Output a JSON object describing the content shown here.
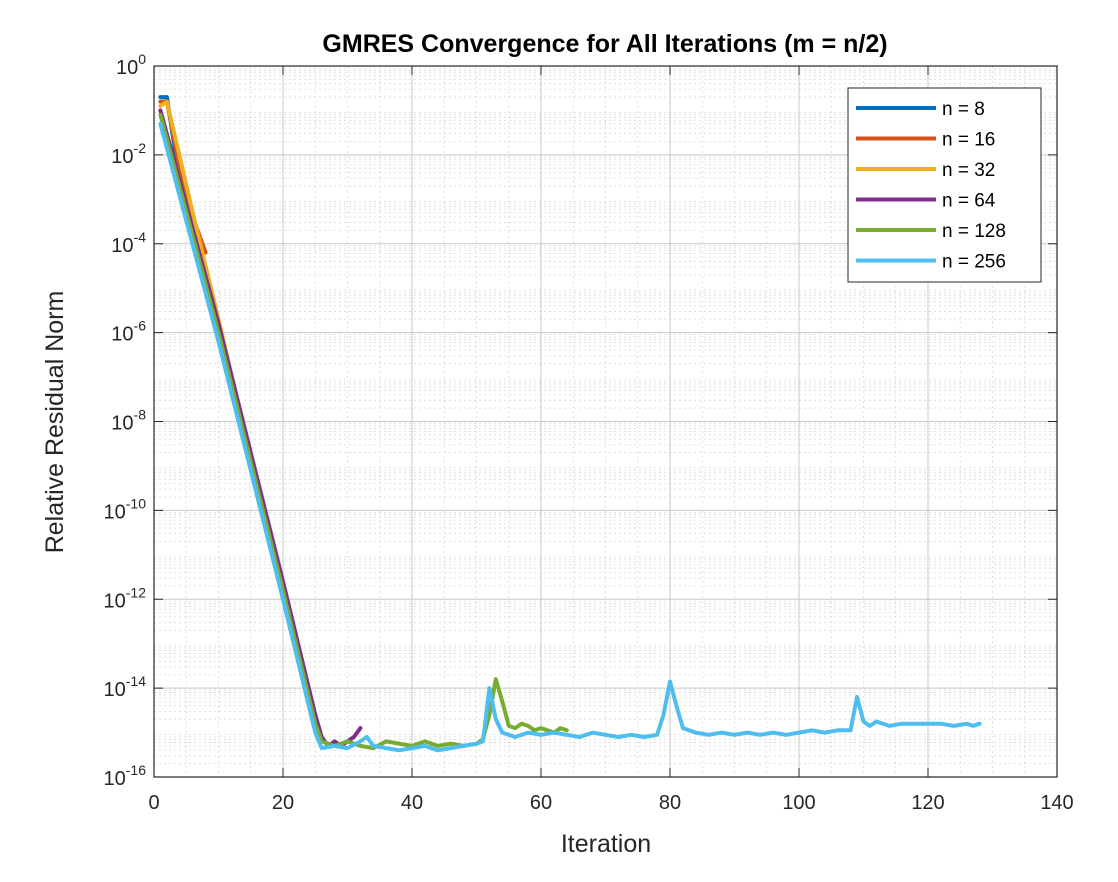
{
  "chart_data": {
    "type": "line",
    "title": "GMRES Convergence for All Iterations (m = n/2)",
    "xlabel": "Iteration",
    "ylabel": "Relative Residual Norm",
    "xlim": [
      0,
      140
    ],
    "ylim_exp": [
      -16,
      0
    ],
    "yscale": "log",
    "grid": true,
    "minor_grid": true,
    "legend_position": "top-right",
    "x_ticks": [
      "0",
      "20",
      "40",
      "60",
      "80",
      "100",
      "120",
      "140"
    ],
    "y_ticks": [
      {
        "base": "10",
        "exp": "0"
      },
      {
        "base": "10",
        "exp": "-2"
      },
      {
        "base": "10",
        "exp": "-4"
      },
      {
        "base": "10",
        "exp": "-6"
      },
      {
        "base": "10",
        "exp": "-8"
      },
      {
        "base": "10",
        "exp": "-10"
      },
      {
        "base": "10",
        "exp": "-12"
      },
      {
        "base": "10",
        "exp": "-14"
      },
      {
        "base": "10",
        "exp": "-16"
      }
    ],
    "series": [
      {
        "name": "n = 8",
        "color": "#0072BD",
        "points": [
          [
            1,
            -0.7
          ],
          [
            2,
            -0.7
          ],
          [
            3,
            -1.65
          ],
          [
            4,
            -2.6
          ]
        ]
      },
      {
        "name": "n = 16",
        "color": "#D95319",
        "points": [
          [
            1,
            -0.8
          ],
          [
            2,
            -0.8
          ],
          [
            4,
            -2.3
          ],
          [
            6,
            -3.4
          ],
          [
            8,
            -4.2
          ]
        ]
      },
      {
        "name": "n = 32",
        "color": "#EDB120",
        "points": [
          [
            1,
            -0.9
          ],
          [
            2,
            -0.8
          ],
          [
            6,
            -3.3
          ],
          [
            10,
            -5.7
          ],
          [
            14,
            -8.2
          ],
          [
            16,
            -9.4
          ]
        ]
      },
      {
        "name": "n = 64",
        "color": "#7E2F8E",
        "points": [
          [
            1,
            -1.0
          ],
          [
            10,
            -5.8
          ],
          [
            20,
            -11.6
          ],
          [
            25,
            -14.6
          ],
          [
            26,
            -15.1
          ],
          [
            27,
            -15.3
          ],
          [
            28,
            -15.2
          ],
          [
            29,
            -15.3
          ],
          [
            30,
            -15.2
          ],
          [
            31,
            -15.1
          ],
          [
            32,
            -14.9
          ]
        ]
      },
      {
        "name": "n = 128",
        "color": "#77AC30",
        "points": [
          [
            1,
            -1.1
          ],
          [
            10,
            -6.0
          ],
          [
            20,
            -11.8
          ],
          [
            25,
            -14.8
          ],
          [
            26,
            -15.2
          ],
          [
            28,
            -15.3
          ],
          [
            30,
            -15.2
          ],
          [
            32,
            -15.3
          ],
          [
            34,
            -15.35
          ],
          [
            36,
            -15.2
          ],
          [
            38,
            -15.25
          ],
          [
            40,
            -15.3
          ],
          [
            42,
            -15.2
          ],
          [
            44,
            -15.3
          ],
          [
            46,
            -15.25
          ],
          [
            48,
            -15.3
          ],
          [
            50,
            -15.25
          ],
          [
            51,
            -15.15
          ],
          [
            52,
            -14.6
          ],
          [
            53,
            -13.8
          ],
          [
            54,
            -14.3
          ],
          [
            55,
            -14.85
          ],
          [
            56,
            -14.9
          ],
          [
            57,
            -14.8
          ],
          [
            58,
            -14.85
          ],
          [
            59,
            -14.95
          ],
          [
            60,
            -14.9
          ],
          [
            61,
            -14.95
          ],
          [
            62,
            -15.0
          ],
          [
            63,
            -14.9
          ],
          [
            64,
            -14.95
          ]
        ]
      },
      {
        "name": "n = 256",
        "color": "#4DBEEE",
        "points": [
          [
            1,
            -1.3
          ],
          [
            10,
            -6.2
          ],
          [
            20,
            -12.0
          ],
          [
            25,
            -15.0
          ],
          [
            26,
            -15.35
          ],
          [
            28,
            -15.3
          ],
          [
            30,
            -15.35
          ],
          [
            32,
            -15.2
          ],
          [
            33,
            -15.1
          ],
          [
            34,
            -15.3
          ],
          [
            36,
            -15.35
          ],
          [
            38,
            -15.4
          ],
          [
            40,
            -15.35
          ],
          [
            42,
            -15.3
          ],
          [
            44,
            -15.4
          ],
          [
            46,
            -15.35
          ],
          [
            48,
            -15.3
          ],
          [
            50,
            -15.25
          ],
          [
            51,
            -15.2
          ],
          [
            52,
            -14.0
          ],
          [
            53,
            -14.7
          ],
          [
            54,
            -15.0
          ],
          [
            55,
            -15.05
          ],
          [
            56,
            -15.1
          ],
          [
            58,
            -15.0
          ],
          [
            60,
            -15.05
          ],
          [
            62,
            -15.0
          ],
          [
            64,
            -15.05
          ],
          [
            66,
            -15.1
          ],
          [
            68,
            -15.0
          ],
          [
            70,
            -15.05
          ],
          [
            72,
            -15.1
          ],
          [
            74,
            -15.05
          ],
          [
            76,
            -15.1
          ],
          [
            78,
            -15.05
          ],
          [
            79,
            -14.6
          ],
          [
            80,
            -13.85
          ],
          [
            81,
            -14.4
          ],
          [
            82,
            -14.9
          ],
          [
            84,
            -15.0
          ],
          [
            86,
            -15.05
          ],
          [
            88,
            -15.0
          ],
          [
            90,
            -15.05
          ],
          [
            92,
            -15.0
          ],
          [
            94,
            -15.05
          ],
          [
            96,
            -15.0
          ],
          [
            98,
            -15.05
          ],
          [
            100,
            -15.0
          ],
          [
            102,
            -14.95
          ],
          [
            104,
            -15.0
          ],
          [
            106,
            -14.95
          ],
          [
            108,
            -14.95
          ],
          [
            109,
            -14.2
          ],
          [
            110,
            -14.75
          ],
          [
            111,
            -14.85
          ],
          [
            112,
            -14.75
          ],
          [
            114,
            -14.85
          ],
          [
            116,
            -14.8
          ],
          [
            118,
            -14.8
          ],
          [
            120,
            -14.8
          ],
          [
            122,
            -14.8
          ],
          [
            124,
            -14.85
          ],
          [
            126,
            -14.8
          ],
          [
            127,
            -14.85
          ],
          [
            128,
            -14.8
          ]
        ]
      }
    ]
  }
}
